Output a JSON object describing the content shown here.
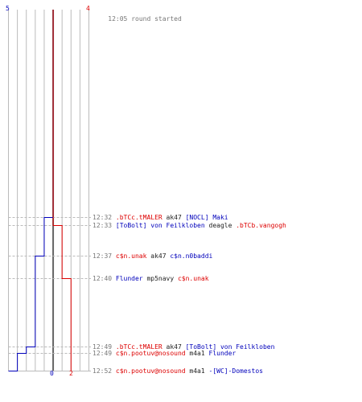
{
  "colors": {
    "team_blue": "#0000bb",
    "team_red": "#dd0000",
    "grid": "#bbbbbb",
    "center_line": "#666666",
    "dashed": "#bbbbbb",
    "time": "#777777",
    "text": "#222222"
  },
  "round": {
    "start_time": "12:05",
    "start_label": "round started",
    "blue_initial": 5,
    "red_initial": 4,
    "blue_final": 0,
    "red_final": 2
  },
  "events": [
    {
      "time": "12:32",
      "parts": [
        {
          "t": ".bTCc.tMALER",
          "c": "red"
        },
        {
          "t": " ak47 ",
          "c": "text"
        },
        {
          "t": "[NOCL] Maki",
          "c": "blue"
        }
      ],
      "blue_after": 4,
      "red_after": 4
    },
    {
      "time": "12:33",
      "parts": [
        {
          "t": "[ToBolt] von Feilkloben",
          "c": "blue"
        },
        {
          "t": " deagle ",
          "c": "text"
        },
        {
          "t": ".bTCb.vangogh",
          "c": "red"
        }
      ],
      "blue_after": 4,
      "red_after": 3
    },
    {
      "time": "12:37",
      "parts": [
        {
          "t": "c$n.unak",
          "c": "red"
        },
        {
          "t": " ak47 ",
          "c": "text"
        },
        {
          "t": "c$n.n0baddi",
          "c": "blue"
        }
      ],
      "blue_after": 3,
      "red_after": 3
    },
    {
      "time": "12:40",
      "parts": [
        {
          "t": "Flunder",
          "c": "blue"
        },
        {
          "t": " mp5navy ",
          "c": "text"
        },
        {
          "t": "c$n.unak",
          "c": "red"
        }
      ],
      "blue_after": 3,
      "red_after": 2
    },
    {
      "time": "12:49",
      "parts": [
        {
          "t": ".bTCc.tMALER",
          "c": "red"
        },
        {
          "t": " ak47 ",
          "c": "text"
        },
        {
          "t": "[ToBolt] von Feilkloben",
          "c": "blue"
        }
      ],
      "blue_after": 2,
      "red_after": 2
    },
    {
      "time": "12:49",
      "parts": [
        {
          "t": "c$n.pootuv@nosound",
          "c": "red"
        },
        {
          "t": " m4a1 ",
          "c": "text"
        },
        {
          "t": "Flunder",
          "c": "blue"
        }
      ],
      "blue_after": 1,
      "red_after": 2
    },
    {
      "time": "12:52",
      "parts": [
        {
          "t": "c$n.pootuv@nosound",
          "c": "red"
        },
        {
          "t": " m4a1 ",
          "c": "text"
        },
        {
          "t": "-[WC]-Domestos",
          "c": "blue"
        }
      ],
      "blue_after": 0,
      "red_after": 2
    }
  ]
}
